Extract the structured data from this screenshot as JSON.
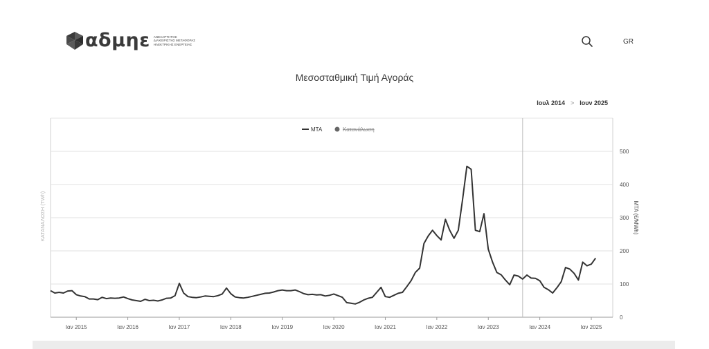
{
  "header": {
    "logo_text": "αδμηε",
    "logo_tagline": [
      "ΑΝΕΞΑΡΤΗΤΟΣ",
      "ΔΙΑΧΕΙΡΙΣΤΗΣ ΜΕΤΑΦΟΡΑΣ",
      "ΗΛΕΚΤΡΙΚΗΣ ΕΝΕΡΓΕΙΑΣ"
    ],
    "search_icon": "search-icon",
    "lang_label": "GR"
  },
  "page_title": "Μεσοσταθμική Τιμή Αγοράς",
  "range": {
    "from": "Ιουλ 2014",
    "separator": ">",
    "to": "Ιουν 2025"
  },
  "colors": {
    "series": "#333333",
    "grid": "#e2e2e2",
    "axis_text": "#555555",
    "muted": "#b5b5b5"
  },
  "chart_data": {
    "type": "line",
    "legend": [
      {
        "name": "ΜΤΑ",
        "active": true
      },
      {
        "name": "Κατανάλωση",
        "active": false
      }
    ],
    "legend_position": "top-center",
    "y_left_label": "ΚΑΤΑΝΑΛΩΣΗ (TWh)",
    "y_right_label": "ΜΤΑ (€/MWh)",
    "y_ticks": [
      0,
      100,
      200,
      300,
      400,
      500
    ],
    "ylim": [
      0,
      600
    ],
    "xlim": [
      "2014-07",
      "2025-06"
    ],
    "x_ticks": [
      {
        "label": "Ιαν 2015",
        "date": "2015-01"
      },
      {
        "label": "Ιαν 2016",
        "date": "2016-01"
      },
      {
        "label": "Ιαν 2017",
        "date": "2017-01"
      },
      {
        "label": "Ιαν 2018",
        "date": "2018-01"
      },
      {
        "label": "Ιαν 2019",
        "date": "2019-01"
      },
      {
        "label": "Ιαν 2020",
        "date": "2020-01"
      },
      {
        "label": "Ιαν 2021",
        "date": "2021-01"
      },
      {
        "label": "Ιαν 2022",
        "date": "2022-01"
      },
      {
        "label": "Ιαν 2023",
        "date": "2023-01"
      },
      {
        "label": "Ιαν 2024",
        "date": "2024-01"
      },
      {
        "label": "Ιαν 2025",
        "date": "2025-01"
      }
    ],
    "hover_marker": "2023-09",
    "grid": true,
    "series": [
      {
        "name": "ΜΤΑ",
        "points": [
          [
            "2014-07",
            80
          ],
          [
            "2014-08",
            73
          ],
          [
            "2014-09",
            75
          ],
          [
            "2014-10",
            73
          ],
          [
            "2014-11",
            79
          ],
          [
            "2014-12",
            80
          ],
          [
            "2015-01",
            68
          ],
          [
            "2015-02",
            64
          ],
          [
            "2015-03",
            62
          ],
          [
            "2015-04",
            55
          ],
          [
            "2015-05",
            55
          ],
          [
            "2015-06",
            53
          ],
          [
            "2015-07",
            60
          ],
          [
            "2015-08",
            56
          ],
          [
            "2015-09",
            58
          ],
          [
            "2015-10",
            57
          ],
          [
            "2015-11",
            58
          ],
          [
            "2015-12",
            61
          ],
          [
            "2016-01",
            56
          ],
          [
            "2016-02",
            52
          ],
          [
            "2016-03",
            50
          ],
          [
            "2016-04",
            48
          ],
          [
            "2016-05",
            54
          ],
          [
            "2016-06",
            50
          ],
          [
            "2016-07",
            51
          ],
          [
            "2016-08",
            49
          ],
          [
            "2016-09",
            52
          ],
          [
            "2016-10",
            57
          ],
          [
            "2016-11",
            58
          ],
          [
            "2016-12",
            65
          ],
          [
            "2017-01",
            102
          ],
          [
            "2017-02",
            73
          ],
          [
            "2017-03",
            62
          ],
          [
            "2017-04",
            60
          ],
          [
            "2017-05",
            59
          ],
          [
            "2017-06",
            61
          ],
          [
            "2017-07",
            64
          ],
          [
            "2017-08",
            63
          ],
          [
            "2017-09",
            62
          ],
          [
            "2017-10",
            65
          ],
          [
            "2017-11",
            70
          ],
          [
            "2017-12",
            88
          ],
          [
            "2018-01",
            71
          ],
          [
            "2018-02",
            61
          ],
          [
            "2018-03",
            59
          ],
          [
            "2018-04",
            58
          ],
          [
            "2018-05",
            60
          ],
          [
            "2018-06",
            63
          ],
          [
            "2018-07",
            66
          ],
          [
            "2018-08",
            69
          ],
          [
            "2018-09",
            72
          ],
          [
            "2018-10",
            73
          ],
          [
            "2018-11",
            76
          ],
          [
            "2018-12",
            80
          ],
          [
            "2019-01",
            82
          ],
          [
            "2019-02",
            80
          ],
          [
            "2019-03",
            80
          ],
          [
            "2019-04",
            82
          ],
          [
            "2019-05",
            77
          ],
          [
            "2019-06",
            71
          ],
          [
            "2019-07",
            68
          ],
          [
            "2019-08",
            69
          ],
          [
            "2019-09",
            67
          ],
          [
            "2019-10",
            68
          ],
          [
            "2019-11",
            64
          ],
          [
            "2019-12",
            66
          ],
          [
            "2020-01",
            70
          ],
          [
            "2020-02",
            65
          ],
          [
            "2020-03",
            60
          ],
          [
            "2020-04",
            44
          ],
          [
            "2020-05",
            42
          ],
          [
            "2020-06",
            40
          ],
          [
            "2020-07",
            45
          ],
          [
            "2020-08",
            52
          ],
          [
            "2020-09",
            57
          ],
          [
            "2020-10",
            60
          ],
          [
            "2020-11",
            75
          ],
          [
            "2020-12",
            90
          ],
          [
            "2021-01",
            62
          ],
          [
            "2021-02",
            60
          ],
          [
            "2021-03",
            66
          ],
          [
            "2021-04",
            72
          ],
          [
            "2021-05",
            75
          ],
          [
            "2021-06",
            92
          ],
          [
            "2021-07",
            110
          ],
          [
            "2021-08",
            135
          ],
          [
            "2021-09",
            148
          ],
          [
            "2021-10",
            222
          ],
          [
            "2021-11",
            245
          ],
          [
            "2021-12",
            262
          ],
          [
            "2022-01",
            246
          ],
          [
            "2022-02",
            233
          ],
          [
            "2022-03",
            295
          ],
          [
            "2022-04",
            262
          ],
          [
            "2022-05",
            238
          ],
          [
            "2022-06",
            262
          ],
          [
            "2022-07",
            355
          ],
          [
            "2022-08",
            455
          ],
          [
            "2022-09",
            446
          ],
          [
            "2022-10",
            262
          ],
          [
            "2022-11",
            258
          ],
          [
            "2022-12",
            312
          ],
          [
            "2023-01",
            205
          ],
          [
            "2023-02",
            166
          ],
          [
            "2023-03",
            135
          ],
          [
            "2023-04",
            128
          ],
          [
            "2023-05",
            112
          ],
          [
            "2023-06",
            98
          ],
          [
            "2023-07",
            127
          ],
          [
            "2023-08",
            124
          ],
          [
            "2023-09",
            115
          ],
          [
            "2023-10",
            127
          ],
          [
            "2023-11",
            118
          ],
          [
            "2023-12",
            117
          ],
          [
            "2024-01",
            110
          ],
          [
            "2024-02",
            90
          ],
          [
            "2024-03",
            83
          ],
          [
            "2024-04",
            73
          ],
          [
            "2024-05",
            89
          ],
          [
            "2024-06",
            107
          ],
          [
            "2024-07",
            150
          ],
          [
            "2024-08",
            145
          ],
          [
            "2024-09",
            132
          ],
          [
            "2024-10",
            112
          ],
          [
            "2024-11",
            166
          ],
          [
            "2024-12",
            155
          ],
          [
            "2025-01",
            160
          ],
          [
            "2025-02",
            178
          ]
        ]
      }
    ]
  }
}
